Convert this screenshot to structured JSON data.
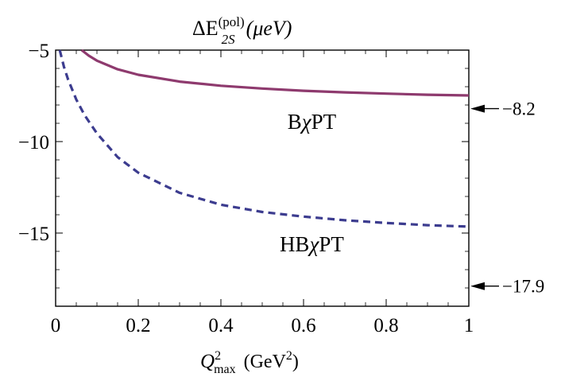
{
  "chart_data": {
    "type": "line",
    "title": {
      "main": "ΔE",
      "sup": "(pol)",
      "sub": "2S",
      "unit": "(μeV)"
    },
    "xlabel": {
      "main": "Q",
      "sup": "2",
      "sub": "max",
      "unit_pre": "(GeV",
      "unit_sup": "2",
      "unit_post": ")"
    },
    "xlim": [
      0,
      1
    ],
    "ylim": [
      -19,
      -5
    ],
    "xticks": [
      {
        "value": 0,
        "label": "0"
      },
      {
        "value": 0.2,
        "label": "0.2"
      },
      {
        "value": 0.4,
        "label": "0.4"
      },
      {
        "value": 0.6,
        "label": "0.6"
      },
      {
        "value": 0.8,
        "label": "0.8"
      },
      {
        "value": 1,
        "label": "1"
      }
    ],
    "yticks": [
      {
        "value": -5,
        "label": "−5"
      },
      {
        "value": -10,
        "label": "−10"
      },
      {
        "value": -15,
        "label": "−15"
      }
    ],
    "grid": false,
    "series": [
      {
        "name": "BχPT",
        "style": "solid",
        "color": "#8e3a6e",
        "x": [
          0.063,
          0.08,
          0.1,
          0.15,
          0.2,
          0.3,
          0.4,
          0.5,
          0.6,
          0.7,
          0.8,
          0.9,
          1.0
        ],
        "y": [
          -5.0,
          -5.3,
          -5.58,
          -6.05,
          -6.35,
          -6.72,
          -6.95,
          -7.1,
          -7.22,
          -7.31,
          -7.38,
          -7.44,
          -7.48
        ]
      },
      {
        "name": "HBχPT",
        "style": "dashed",
        "color": "#3c3c8f",
        "x": [
          0.01,
          0.02,
          0.03,
          0.05,
          0.07,
          0.1,
          0.15,
          0.2,
          0.3,
          0.4,
          0.5,
          0.6,
          0.7,
          0.8,
          0.9,
          1.0
        ],
        "y": [
          -5.0,
          -5.9,
          -6.6,
          -7.7,
          -8.55,
          -9.55,
          -10.85,
          -11.7,
          -12.8,
          -13.45,
          -13.85,
          -14.1,
          -14.3,
          -14.45,
          -14.57,
          -14.65
        ]
      }
    ],
    "annotations": [
      {
        "text": "BχPT",
        "x": 0.62,
        "y": -9.3
      },
      {
        "text": "HBχPT",
        "x": 0.62,
        "y": -16.0
      }
    ],
    "arrows": [
      {
        "label": "−8.2",
        "y": -8.2
      },
      {
        "label": "−17.9",
        "y": -17.9
      }
    ]
  }
}
